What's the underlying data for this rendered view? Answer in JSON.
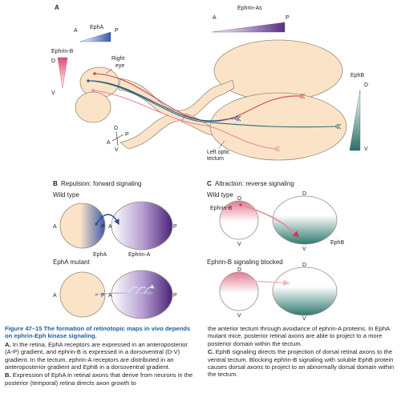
{
  "panels": {
    "A": {
      "letter": "A",
      "ephrin_as": "Ephrin-As",
      "epha": "EphA",
      "ephrin_b": "Ephrin-B",
      "ephb": "EphB",
      "right_eye": "Right eye",
      "left_optic_tectum": "Left optic tectum",
      "axis_a": "A",
      "axis_p": "P",
      "axis_d": "D",
      "axis_v": "V"
    },
    "B": {
      "letter": "B",
      "title": "Repulsion: forward signaling",
      "wild_type": "Wild type",
      "epha_mutant": "EphA mutant",
      "epha": "EphA",
      "ephrin_a": "Ephrin-A",
      "axis_a": "A",
      "axis_p": "P"
    },
    "C": {
      "letter": "C",
      "title": "Attraction: reverse signaling",
      "wild_type": "Wild type",
      "blocked": "Ephrin-B signaling blocked",
      "ephrin_b": "Ephrin-B",
      "ephb": "EphB",
      "axis_d": "D",
      "axis_v": "V"
    }
  },
  "caption": {
    "title": "Figure 47–15 The formation of retinotopic maps in vivo depends on ephrin-Eph kinase signaling.",
    "a_key": "A.",
    "a_text": "In the retina, EphA receptors are expressed in an anteroposterior (A-P) gradient, and ephrin-B is expressed in a dorsoventral (D-V) gradient. In the tectum, ephrin-A receptors are distributed in an anteroposterior gradient and EphB in a dorsoventral gradient.",
    "b_key": "B.",
    "b_text": "Expression of EphA in retinal axons that derive from neurons in the posterior (temporal) retina directs axon growth to",
    "b_cont": "the anterior tectum through avoidance of ephrin-A proteins. In EphA mutant mice, posterior retinal axons are able to project to a more posterior domain within the tectum.",
    "c_key": "C.",
    "c_text": "EphB signaling directs the projection of dorsal retinal axons to the ventral tectum. Blocking ephrin-B signaling with soluble EphB protein causes dorsal axons to project to an abnormally dorsal domain within the tectum."
  },
  "colors": {
    "tissue": "#fbe3c8",
    "outline": "#9a8a7a",
    "epha_blue": "#3d5aa8",
    "ephrin_purple": "#5b2d86",
    "ephrin_b_pink": "#e7889b",
    "ephb_teal": "#2d6e66",
    "caption_title": "#1f5e9e"
  }
}
